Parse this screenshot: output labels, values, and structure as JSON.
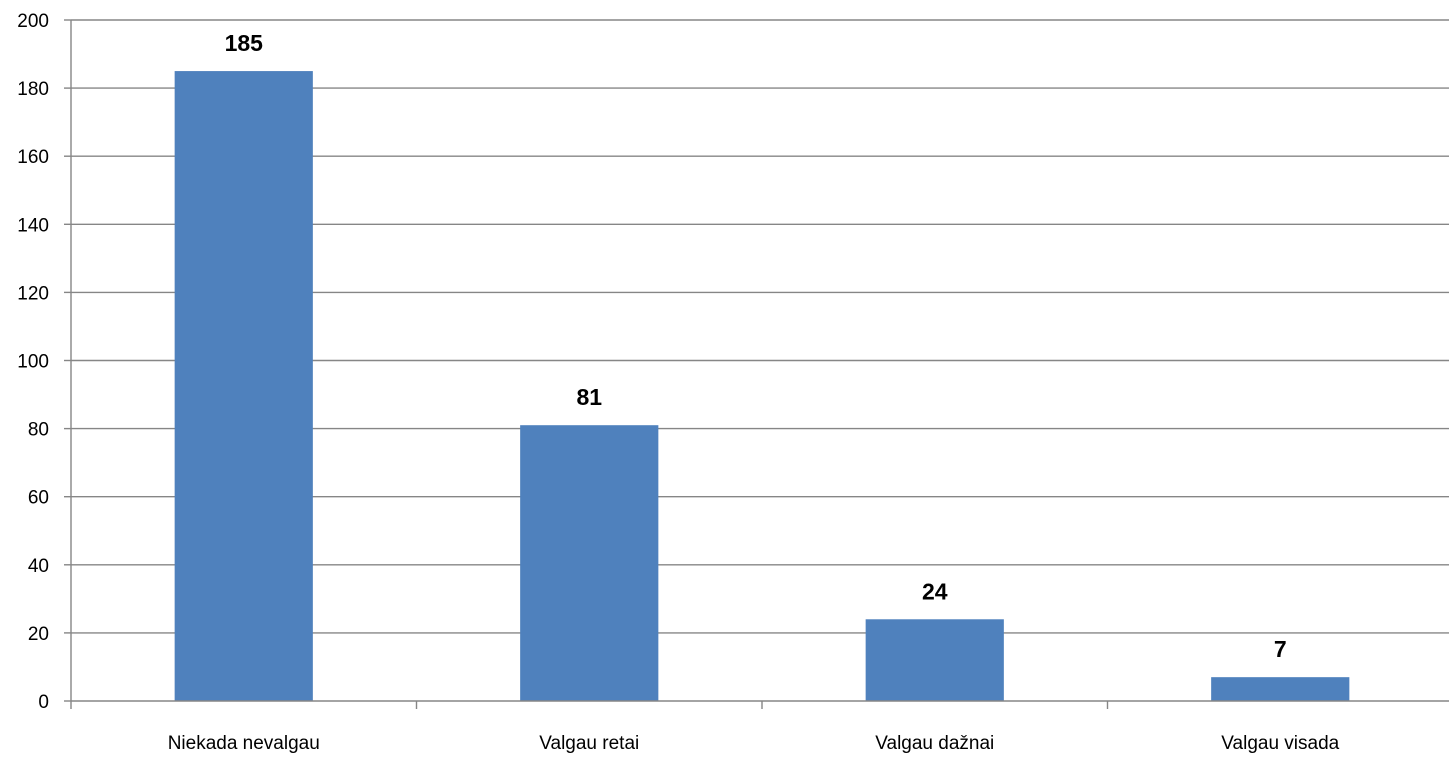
{
  "chart_data": {
    "type": "bar",
    "categories": [
      "Niekada nevalgau",
      "Valgau retai",
      "Valgau dažnai",
      "Valgau visada"
    ],
    "values": [
      185,
      81,
      24,
      7
    ],
    "data_labels": [
      "185",
      "81",
      "24",
      "7"
    ],
    "ylim": [
      0,
      200
    ],
    "yticks": [
      "0",
      "20",
      "40",
      "60",
      "80",
      "100",
      "120",
      "140",
      "160",
      "180",
      "200"
    ],
    "grid": true,
    "legend": "none",
    "bar_color": "#4F81BD",
    "grid_color": "#868686"
  }
}
